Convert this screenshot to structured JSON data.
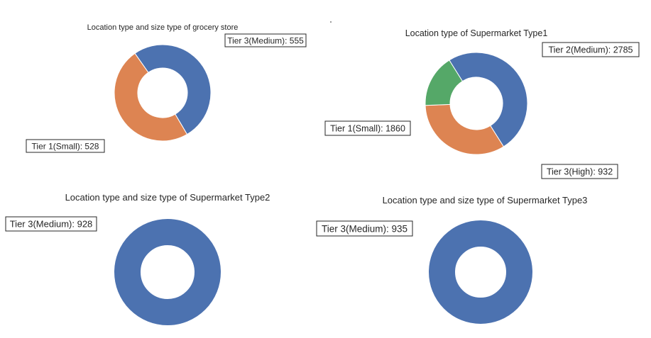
{
  "chart_data": [
    {
      "type": "pie",
      "donut": true,
      "title": "Location type and size type of grocery store",
      "slices": [
        {
          "label": "Tier 3(Medium): 555",
          "value": 555,
          "color": "#4c72b0"
        },
        {
          "label": "Tier 1(Small): 528",
          "value": 528,
          "color": "#dd8452"
        }
      ]
    },
    {
      "type": "pie",
      "donut": true,
      "title": "Location type of Supermarket Type1",
      "slices": [
        {
          "label": "Tier 2(Medium): 2785",
          "value": 2785,
          "color": "#4c72b0"
        },
        {
          "label": "Tier 1(Small): 1860",
          "value": 1860,
          "color": "#dd8452"
        },
        {
          "label": "Tier 3(High): 932",
          "value": 932,
          "color": "#55a868"
        }
      ]
    },
    {
      "type": "pie",
      "donut": true,
      "title": "Location type and size type of Supermarket Type2",
      "slices": [
        {
          "label": "Tier 3(Medium): 928",
          "value": 928,
          "color": "#4c72b0"
        }
      ]
    },
    {
      "type": "pie",
      "donut": true,
      "title": "Location type and size type of Supermarket Type3",
      "slices": [
        {
          "label": "Tier 3(Medium): 935",
          "value": 935,
          "color": "#4c72b0"
        }
      ]
    }
  ]
}
